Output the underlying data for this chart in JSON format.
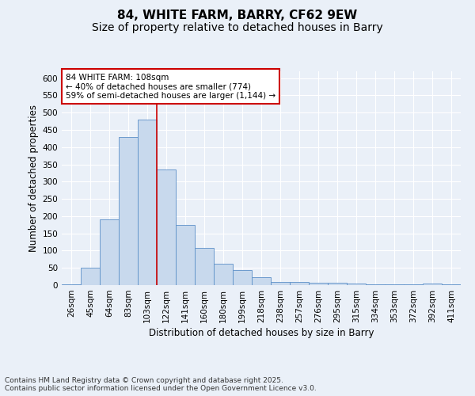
{
  "title1": "84, WHITE FARM, BARRY, CF62 9EW",
  "title2": "Size of property relative to detached houses in Barry",
  "xlabel": "Distribution of detached houses by size in Barry",
  "ylabel": "Number of detached properties",
  "categories": [
    "26sqm",
    "45sqm",
    "64sqm",
    "83sqm",
    "103sqm",
    "122sqm",
    "141sqm",
    "160sqm",
    "180sqm",
    "199sqm",
    "218sqm",
    "238sqm",
    "257sqm",
    "276sqm",
    "295sqm",
    "315sqm",
    "334sqm",
    "353sqm",
    "372sqm",
    "392sqm",
    "411sqm"
  ],
  "values": [
    3,
    50,
    190,
    430,
    480,
    335,
    175,
    108,
    62,
    43,
    22,
    10,
    10,
    8,
    6,
    5,
    3,
    2,
    2,
    5,
    3
  ],
  "bar_color": "#c8d9ed",
  "bar_edge_color": "#5b8fc7",
  "highlight_line_color": "#cc0000",
  "highlight_bar_index": 4,
  "annotation_line1": "84 WHITE FARM: 108sqm",
  "annotation_line2": "← 40% of detached houses are smaller (774)",
  "annotation_line3": "59% of semi-detached houses are larger (1,144) →",
  "annotation_box_color": "#ffffff",
  "annotation_box_edge": "#cc0000",
  "ylim": [
    0,
    620
  ],
  "yticks": [
    0,
    50,
    100,
    150,
    200,
    250,
    300,
    350,
    400,
    450,
    500,
    550,
    600
  ],
  "footer": "Contains HM Land Registry data © Crown copyright and database right 2025.\nContains public sector information licensed under the Open Government Licence v3.0.",
  "bg_color": "#eaf0f8",
  "grid_color": "#ffffff",
  "title_fontsize": 11,
  "subtitle_fontsize": 10,
  "axis_label_fontsize": 8.5,
  "tick_fontsize": 7.5,
  "annotation_fontsize": 7.5,
  "footer_fontsize": 6.5
}
